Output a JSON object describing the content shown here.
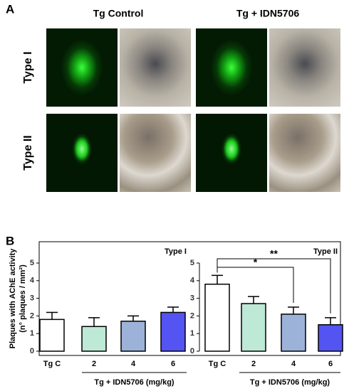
{
  "panel_a": {
    "label": "A",
    "columns": [
      "Tg Control",
      "Tg + IDN5706"
    ],
    "rows": [
      "Type I",
      "Type II"
    ]
  },
  "panel_b_label": "B",
  "chart_data": [
    {
      "type": "bar",
      "title": "Type I",
      "ylabel": [
        "Plaques with AChE activity",
        "(n° plaques / mm²)"
      ],
      "categories": [
        "Tg C",
        "2",
        "4",
        "6"
      ],
      "values": [
        1.8,
        1.4,
        1.7,
        2.2
      ],
      "errors": [
        0.4,
        0.5,
        0.3,
        0.3
      ],
      "colors": [
        "#ffffff",
        "#bde9d6",
        "#9cb2d8",
        "#5454f2"
      ],
      "xlabel": "Tg + IDN5706 (mg/kg)",
      "ylim": [
        0,
        5
      ],
      "yticks": [
        0,
        1,
        2,
        3,
        4,
        5
      ]
    },
    {
      "type": "bar",
      "title": "Type II",
      "categories": [
        "Tg C",
        "2",
        "4",
        "6"
      ],
      "values": [
        3.8,
        2.7,
        2.1,
        1.5
      ],
      "errors": [
        0.5,
        0.4,
        0.4,
        0.4
      ],
      "colors": [
        "#ffffff",
        "#bde9d6",
        "#9cb2d8",
        "#5454f2"
      ],
      "xlabel": "Tg + IDN5706 (mg/kg)",
      "ylim": [
        0,
        5
      ],
      "yticks": [
        0,
        1,
        2,
        3,
        4,
        5
      ],
      "annotations": [
        "*",
        "**"
      ]
    }
  ]
}
